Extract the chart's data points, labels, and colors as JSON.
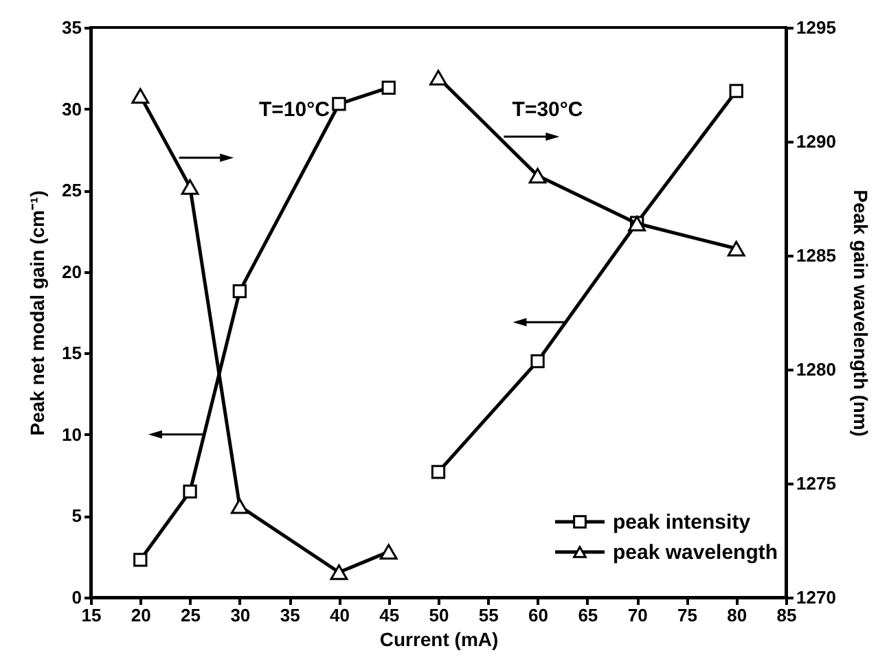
{
  "chart_data": {
    "type": "line",
    "xlabel": "Current (mA)",
    "ylabel": "Peak net modal gain (cm⁻¹)",
    "y2label": "Peak gain wavelength (nm)",
    "annotations": [
      "T=10°C",
      "T=30°C"
    ],
    "xlim": [
      15,
      85
    ],
    "xticks": [
      15,
      20,
      25,
      30,
      35,
      40,
      45,
      50,
      55,
      60,
      65,
      70,
      75,
      80,
      85
    ],
    "ylim": [
      0,
      35
    ],
    "yticks": [
      0,
      5,
      10,
      15,
      20,
      25,
      30,
      35
    ],
    "y2lim": [
      1270,
      1295
    ],
    "y2ticks": [
      1270,
      1275,
      1280,
      1285,
      1290,
      1295
    ],
    "grid": false,
    "legend": "bottom right",
    "line_style": "solid",
    "series": [
      {
        "name": "peak intensity",
        "color": "#000000",
        "marker": "square",
        "x": [
          20,
          25,
          30,
          40,
          45
        ],
        "values": [
          2.3,
          6.5,
          18.8,
          30.3,
          31.3
        ]
      },
      {
        "color": "#000000",
        "marker": "square",
        "x": [
          50,
          60,
          70,
          80
        ],
        "values": [
          7.7,
          14.5,
          23.0,
          31.1
        ]
      },
      {
        "name": "peak wavelength",
        "color": "#000000",
        "marker": "triangle",
        "axis": "y2",
        "x": [
          20,
          25,
          30,
          40,
          45
        ],
        "values": [
          1292.0,
          1288.0,
          1274.0,
          1271.1,
          1272.0
        ]
      },
      {
        "color": "#000000",
        "marker": "triangle",
        "axis": "y2",
        "x": [
          50,
          60,
          70,
          80
        ],
        "values": [
          1292.8,
          1288.5,
          1286.4,
          1285.3
        ]
      }
    ]
  }
}
